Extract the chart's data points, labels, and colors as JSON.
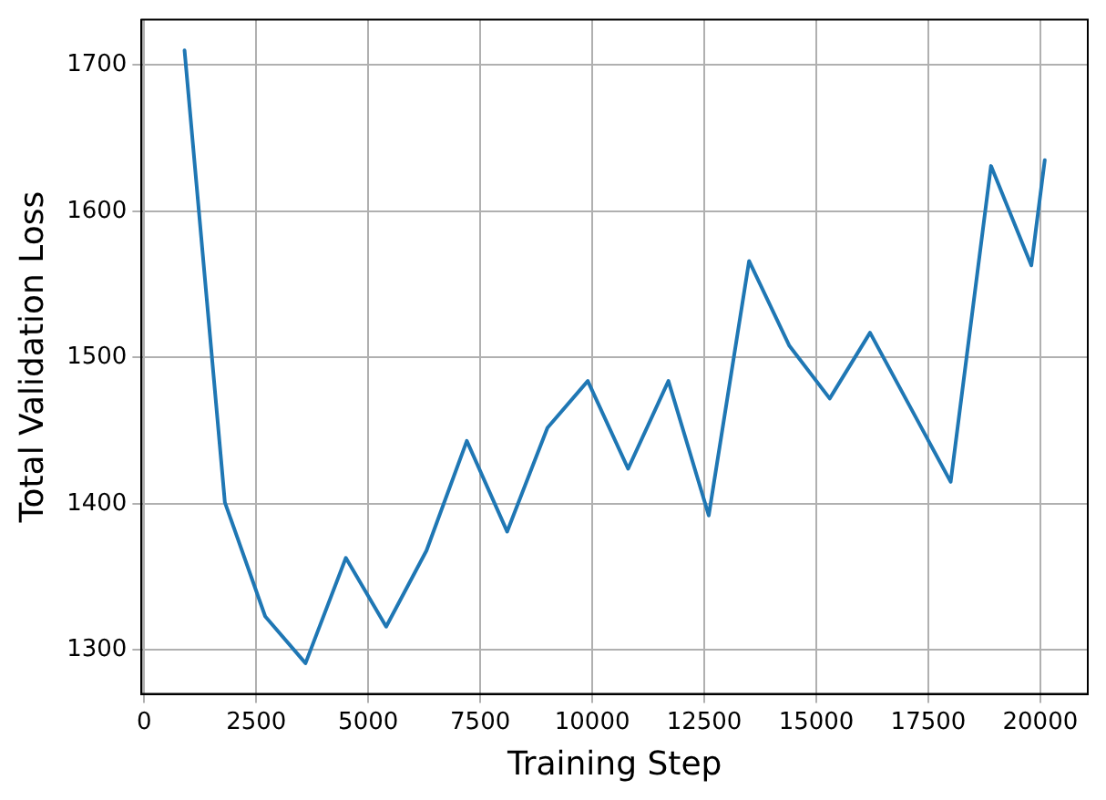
{
  "chart_data": {
    "type": "line",
    "xlabel": "Training Step",
    "ylabel": "Total Validation Loss",
    "x": [
      900,
      1800,
      2700,
      3600,
      4500,
      5400,
      6300,
      7200,
      8100,
      9000,
      9900,
      10800,
      11700,
      12600,
      13500,
      14400,
      15300,
      16200,
      18000,
      18900,
      19800,
      20100
    ],
    "series": [
      {
        "color": "#1f77b4",
        "values": [
          1710,
          1401,
          1323,
          1291,
          1363,
          1316,
          1368,
          1443,
          1381,
          1452,
          1484,
          1424,
          1484,
          1392,
          1566,
          1508,
          1472,
          1517,
          1415,
          1631,
          1563,
          1635
        ]
      }
    ],
    "xlim": [
      -60,
      21060
    ],
    "xticks": [
      0,
      2500,
      5000,
      7500,
      10000,
      12500,
      15000,
      17500,
      20000
    ],
    "ylim": [
      1270,
      1731
    ],
    "yticks": [
      1300,
      1400,
      1500,
      1600,
      1700
    ],
    "grid": true,
    "legend": false,
    "marker": "none",
    "line_style": "solid"
  }
}
